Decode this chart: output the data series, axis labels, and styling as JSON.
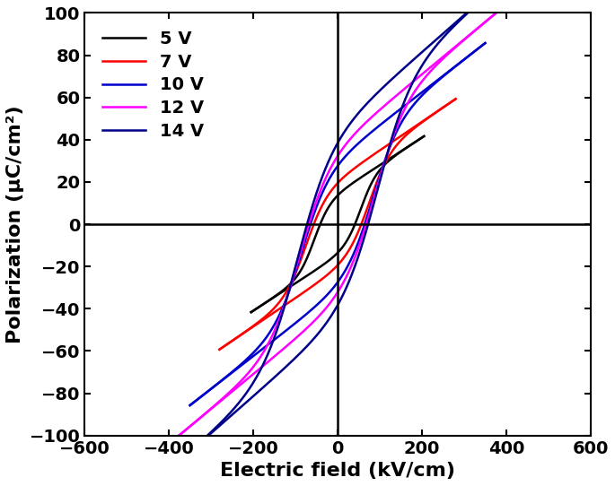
{
  "title": "",
  "xlabel": "Electric field (kV/cm)",
  "ylabel": "Polarization (μC/cm²)",
  "xlim": [
    -600,
    600
  ],
  "ylim": [
    -100,
    100
  ],
  "xticks": [
    -600,
    -400,
    -200,
    0,
    200,
    400,
    600
  ],
  "yticks": [
    -100,
    -80,
    -60,
    -40,
    -20,
    0,
    20,
    40,
    60,
    80,
    100
  ],
  "curves": [
    {
      "label": "5 V",
      "color": "#000000",
      "Emax": 205,
      "Pmax": 30,
      "Ec": 55,
      "Pr": 7,
      "slope": 0.13,
      "lw": 1.8
    },
    {
      "label": "7 V",
      "color": "#ff0000",
      "Emax": 280,
      "Pmax": 43,
      "Ec": 75,
      "Pr": 10,
      "slope": 0.135,
      "lw": 1.8
    },
    {
      "label": "10 V",
      "color": "#0000cd",
      "Emax": 350,
      "Pmax": 63,
      "Ec": 85,
      "Pr": 13,
      "slope": 0.155,
      "lw": 1.8
    },
    {
      "label": "12 V",
      "color": "#ff00ff",
      "Emax": 400,
      "Pmax": 76,
      "Ec": 90,
      "Pr": 15,
      "slope": 0.165,
      "lw": 1.8
    },
    {
      "label": "14 V",
      "color": "#00008b",
      "Emax": 450,
      "Pmax": 93,
      "Ec": 95,
      "Pr": 17,
      "slope": 0.175,
      "lw": 1.8
    }
  ],
  "legend_fontsize": 14,
  "axis_fontsize": 16,
  "tick_fontsize": 14,
  "background_color": "#ffffff",
  "axis_linewidth": 1.5
}
